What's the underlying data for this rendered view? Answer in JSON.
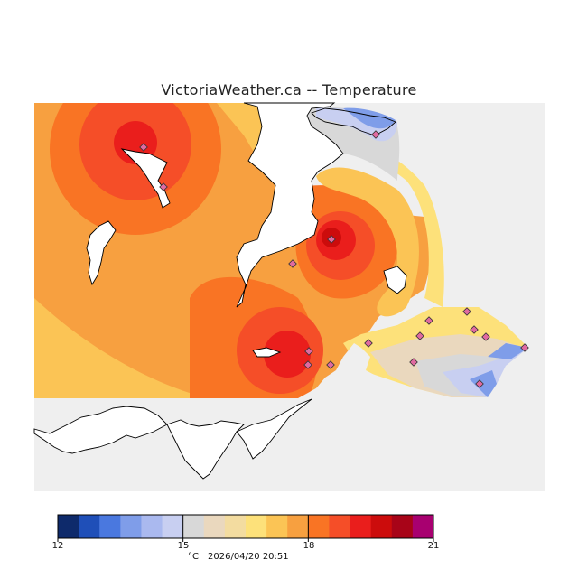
{
  "title": "VictoriaWeather.ca -- Temperature",
  "legend": {
    "colors": [
      "#0e2a6b",
      "#1f4fb8",
      "#4a78df",
      "#7f9de9",
      "#aab9ef",
      "#c8cff1",
      "#d8d8d8",
      "#ead8be",
      "#f3dca0",
      "#fde17a",
      "#fbc455",
      "#f7a040",
      "#f97424",
      "#f54e28",
      "#ea1e1c",
      "#cc0c0c",
      "#a80418",
      "#a80070"
    ],
    "ticks": [
      "12",
      "15",
      "18",
      "21"
    ],
    "units": "°C",
    "timestamp": "2026/04/20 20:51"
  },
  "map": {
    "background_color": "#efefef",
    "base_color": "#f7a040",
    "stations_color": "#e06aa0"
  }
}
